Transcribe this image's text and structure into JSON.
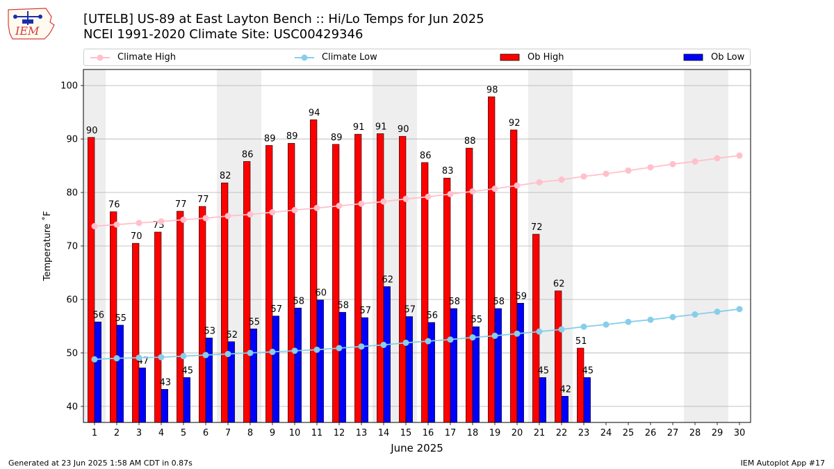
{
  "header": {
    "logo_text": "IEM",
    "title_line1": "[UTELB] US-89 at East Layton Bench  :: Hi/Lo Temps for Jun 2025",
    "title_line2": "NCEI 1991-2020 Climate Site: USC00429346"
  },
  "legend": {
    "items": [
      {
        "label": "Climate High",
        "kind": "line",
        "color": "#ffc0cb"
      },
      {
        "label": "Climate Low",
        "kind": "line",
        "color": "#87ceeb"
      },
      {
        "label": "Ob High",
        "kind": "bar",
        "color": "#ff0000"
      },
      {
        "label": "Ob Low",
        "kind": "bar",
        "color": "#0000ff"
      }
    ]
  },
  "chart_data": {
    "type": "bar",
    "xlabel": "June 2025",
    "ylabel": "Temperature ˚F",
    "ylim": [
      37,
      103
    ],
    "xlim": [
      0.5,
      30.5
    ],
    "y_ticks": [
      40,
      50,
      60,
      70,
      80,
      90,
      100
    ],
    "x_ticks": [
      1,
      2,
      3,
      4,
      5,
      6,
      7,
      8,
      9,
      10,
      11,
      12,
      13,
      14,
      15,
      16,
      17,
      18,
      19,
      20,
      21,
      22,
      23,
      24,
      25,
      26,
      27,
      28,
      29,
      30
    ],
    "grid": "horizontal",
    "weekend_shading": [
      [
        0.5,
        1.5
      ],
      [
        6.5,
        8.5
      ],
      [
        13.5,
        15.5
      ],
      [
        20.5,
        22.5
      ],
      [
        27.5,
        29.5
      ]
    ],
    "weekend_shading_color": "#eeeeee",
    "series": [
      {
        "name": "Ob High",
        "type": "bar",
        "color": "#ff0000",
        "days": [
          1,
          2,
          3,
          4,
          5,
          6,
          7,
          8,
          9,
          10,
          11,
          12,
          13,
          14,
          15,
          16,
          17,
          18,
          19,
          20,
          21,
          22,
          23
        ],
        "values": [
          90.3,
          76.4,
          70.5,
          72.6,
          76.5,
          77.4,
          81.8,
          85.8,
          88.8,
          89.2,
          93.6,
          89.0,
          90.9,
          91.0,
          90.5,
          85.6,
          82.7,
          88.3,
          97.9,
          91.7,
          72.2,
          61.6,
          50.9
        ],
        "labels": [
          "90",
          "76",
          "70",
          "73",
          "77",
          "77",
          "82",
          "86",
          "89",
          "89",
          "94",
          "89",
          "91",
          "91",
          "90",
          "86",
          "83",
          "88",
          "98",
          "92",
          "72",
          "62",
          "51"
        ]
      },
      {
        "name": "Ob Low",
        "type": "bar",
        "color": "#0000ff",
        "days": [
          1,
          2,
          3,
          4,
          5,
          6,
          7,
          8,
          9,
          10,
          11,
          12,
          13,
          14,
          15,
          16,
          17,
          18,
          19,
          20,
          21,
          22,
          23
        ],
        "values": [
          55.8,
          55.2,
          47.2,
          43.2,
          45.4,
          52.8,
          52.1,
          54.5,
          56.9,
          58.4,
          59.9,
          57.6,
          56.6,
          62.4,
          56.8,
          55.7,
          58.3,
          54.9,
          58.3,
          59.3,
          45.4,
          41.9,
          45.4
        ],
        "labels": [
          "56",
          "55",
          "47",
          "43",
          "45",
          "53",
          "52",
          "55",
          "57",
          "58",
          "60",
          "58",
          "57",
          "62",
          "57",
          "56",
          "58",
          "55",
          "58",
          "59",
          "45",
          "42",
          "45"
        ]
      },
      {
        "name": "Climate High",
        "type": "line",
        "color": "#ffc0cb",
        "values": [
          73.7,
          74.0,
          74.3,
          74.6,
          74.9,
          75.2,
          75.6,
          75.9,
          76.3,
          76.7,
          77.1,
          77.5,
          77.9,
          78.3,
          78.8,
          79.2,
          79.7,
          80.2,
          80.7,
          81.3,
          81.9,
          82.4,
          83.0,
          83.5,
          84.1,
          84.7,
          85.3,
          85.8,
          86.4,
          86.9
        ]
      },
      {
        "name": "Climate Low",
        "type": "line",
        "color": "#87ceeb",
        "values": [
          48.8,
          49.0,
          49.1,
          49.2,
          49.4,
          49.6,
          49.8,
          50.0,
          50.2,
          50.4,
          50.6,
          50.9,
          51.2,
          51.5,
          51.9,
          52.2,
          52.5,
          52.9,
          53.2,
          53.6,
          54.0,
          54.4,
          54.9,
          55.3,
          55.8,
          56.2,
          56.7,
          57.2,
          57.7,
          58.2
        ]
      }
    ]
  },
  "footer": {
    "left": "Generated at 23 Jun 2025 1:58 AM CDT in 0.87s",
    "right": "IEM Autoplot App #17"
  }
}
